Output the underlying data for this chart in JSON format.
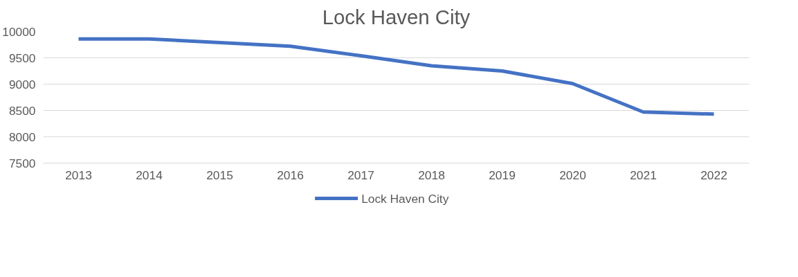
{
  "chart_data": {
    "type": "line",
    "title": "Lock Haven City",
    "categories": [
      "2013",
      "2014",
      "2015",
      "2016",
      "2017",
      "2018",
      "2019",
      "2020",
      "2021",
      "2022"
    ],
    "series": [
      {
        "name": "Lock Haven City",
        "color": "#4472c4",
        "values": [
          9860,
          9860,
          9790,
          9720,
          9540,
          9350,
          9250,
          9010,
          8470,
          8430
        ]
      }
    ],
    "ylim": [
      7500,
      10000
    ],
    "yticks": [
      7500,
      8000,
      8500,
      9000,
      9500,
      10000
    ],
    "grid": "y",
    "legend": "bottom",
    "marker": "none",
    "line_style": "solid"
  }
}
